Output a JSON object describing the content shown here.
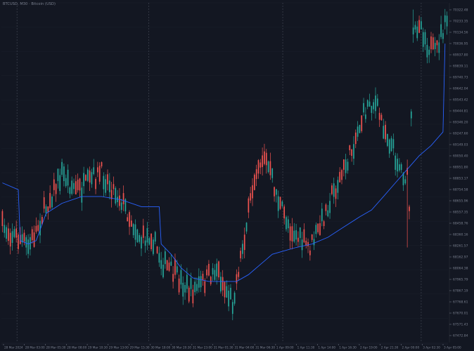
{
  "window": {
    "title": "BTCUSD, M30 · Bitcoin (USD)"
  },
  "colors": {
    "background": "#131722",
    "grid": "#2a2e39",
    "session_separator": "#3a3f4b",
    "up_candle": "#26a69a",
    "down_candle": "#ef5350",
    "ma_line": "#2962ff",
    "axis_text": "#7b8190"
  },
  "chart_data": {
    "type": "candlestick",
    "symbol": "BTCUSD",
    "timeframe": "M30",
    "y_range": [
      64000,
      71000
    ],
    "price_axis_ticks": [
      "70322.48",
      "70233.35",
      "70134.56",
      "70036.95",
      "69937.80",
      "69839.11",
      "69740.73",
      "69642.04",
      "69543.42",
      "69444.81",
      "69346.20",
      "69247.60",
      "69149.03",
      "69050.40",
      "68951.80",
      "68853.17",
      "68754.58",
      "68655.96",
      "68557.35",
      "68458.76",
      "68360.16",
      "68261.57",
      "68162.97",
      "68064.38",
      "67965.79",
      "67867.19",
      "67768.61",
      "67670.01",
      "67571.43",
      "67472.84"
    ],
    "time_axis_labels": [
      "28 Mar 2024",
      "28 Mar 03:00",
      "28 Mar 05:30",
      "28 Mar 08:00",
      "29 Mar 10:30",
      "29 Mar 13:00",
      "29 Mar 15:30",
      "30 Mar 18:00",
      "30 Mar 20:30",
      "31 Mar 23:00",
      "31 Mar 01:30",
      "31 Mar 04:00",
      "31 Mar 06:30",
      "1 Apr 09:00",
      "1 Apr 11:30",
      "1 Apr 14:00",
      "1 Apr 16:30",
      "2 Apr 19:00",
      "2 Apr 21:30",
      "2 Apr 00:00",
      "3 Apr 02:30",
      "3 Apr 05:00"
    ],
    "session_separator_fractions": [
      0.035,
      0.33,
      0.63,
      0.94
    ],
    "candles": {
      "count": 225,
      "path_anchors": [
        [
          0,
          0.66
        ],
        [
          5,
          0.68
        ],
        [
          10,
          0.7
        ],
        [
          13,
          0.72
        ],
        [
          17,
          0.67
        ],
        [
          22,
          0.6
        ],
        [
          26,
          0.55
        ],
        [
          30,
          0.5
        ],
        [
          35,
          0.54
        ],
        [
          40,
          0.55
        ],
        [
          45,
          0.52
        ],
        [
          50,
          0.5
        ],
        [
          55,
          0.54
        ],
        [
          60,
          0.58
        ],
        [
          65,
          0.64
        ],
        [
          70,
          0.7
        ],
        [
          75,
          0.68
        ],
        [
          80,
          0.76
        ],
        [
          85,
          0.79
        ],
        [
          90,
          0.82
        ],
        [
          95,
          0.85
        ],
        [
          100,
          0.83
        ],
        [
          105,
          0.8
        ],
        [
          108,
          0.78
        ],
        [
          112,
          0.84
        ],
        [
          116,
          0.88
        ],
        [
          120,
          0.75
        ],
        [
          124,
          0.62
        ],
        [
          128,
          0.48
        ],
        [
          132,
          0.45
        ],
        [
          136,
          0.52
        ],
        [
          140,
          0.6
        ],
        [
          145,
          0.66
        ],
        [
          150,
          0.7
        ],
        [
          155,
          0.72
        ],
        [
          160,
          0.66
        ],
        [
          165,
          0.58
        ],
        [
          170,
          0.52
        ],
        [
          175,
          0.45
        ],
        [
          180,
          0.36
        ],
        [
          185,
          0.29
        ],
        [
          188,
          0.3
        ],
        [
          192,
          0.36
        ],
        [
          196,
          0.42
        ],
        [
          200,
          0.48
        ],
        [
          204,
          0.52
        ],
        [
          205,
          0.6
        ],
        [
          207,
          0.1
        ],
        [
          210,
          0.05
        ],
        [
          214,
          0.12
        ],
        [
          218,
          0.15
        ],
        [
          222,
          0.08
        ],
        [
          225,
          0.05
        ]
      ],
      "notable_wicks": {
        "spike_down_low": 0.72,
        "spike_down_index": 204,
        "spike_up_high": 0.02,
        "spike_up_index": 207
      }
    },
    "ma_line": {
      "name": "",
      "points": [
        [
          0,
          0.53
        ],
        [
          8,
          0.55
        ],
        [
          9,
          0.7
        ],
        [
          13,
          0.71
        ],
        [
          17,
          0.7
        ],
        [
          22,
          0.62
        ],
        [
          30,
          0.59
        ],
        [
          40,
          0.57
        ],
        [
          50,
          0.57
        ],
        [
          60,
          0.58
        ],
        [
          70,
          0.6
        ],
        [
          79,
          0.6
        ],
        [
          80,
          0.71
        ],
        [
          85,
          0.74
        ],
        [
          90,
          0.78
        ],
        [
          96,
          0.81
        ],
        [
          104,
          0.82
        ],
        [
          112,
          0.82
        ],
        [
          118,
          0.82
        ],
        [
          124,
          0.8
        ],
        [
          130,
          0.77
        ],
        [
          136,
          0.74
        ],
        [
          142,
          0.73
        ],
        [
          148,
          0.72
        ],
        [
          156,
          0.71
        ],
        [
          164,
          0.69
        ],
        [
          172,
          0.66
        ],
        [
          180,
          0.63
        ],
        [
          186,
          0.61
        ],
        [
          192,
          0.57
        ],
        [
          198,
          0.53
        ],
        [
          204,
          0.49
        ],
        [
          210,
          0.45
        ],
        [
          216,
          0.42
        ],
        [
          222,
          0.38
        ],
        [
          223,
          0.12
        ]
      ]
    }
  }
}
